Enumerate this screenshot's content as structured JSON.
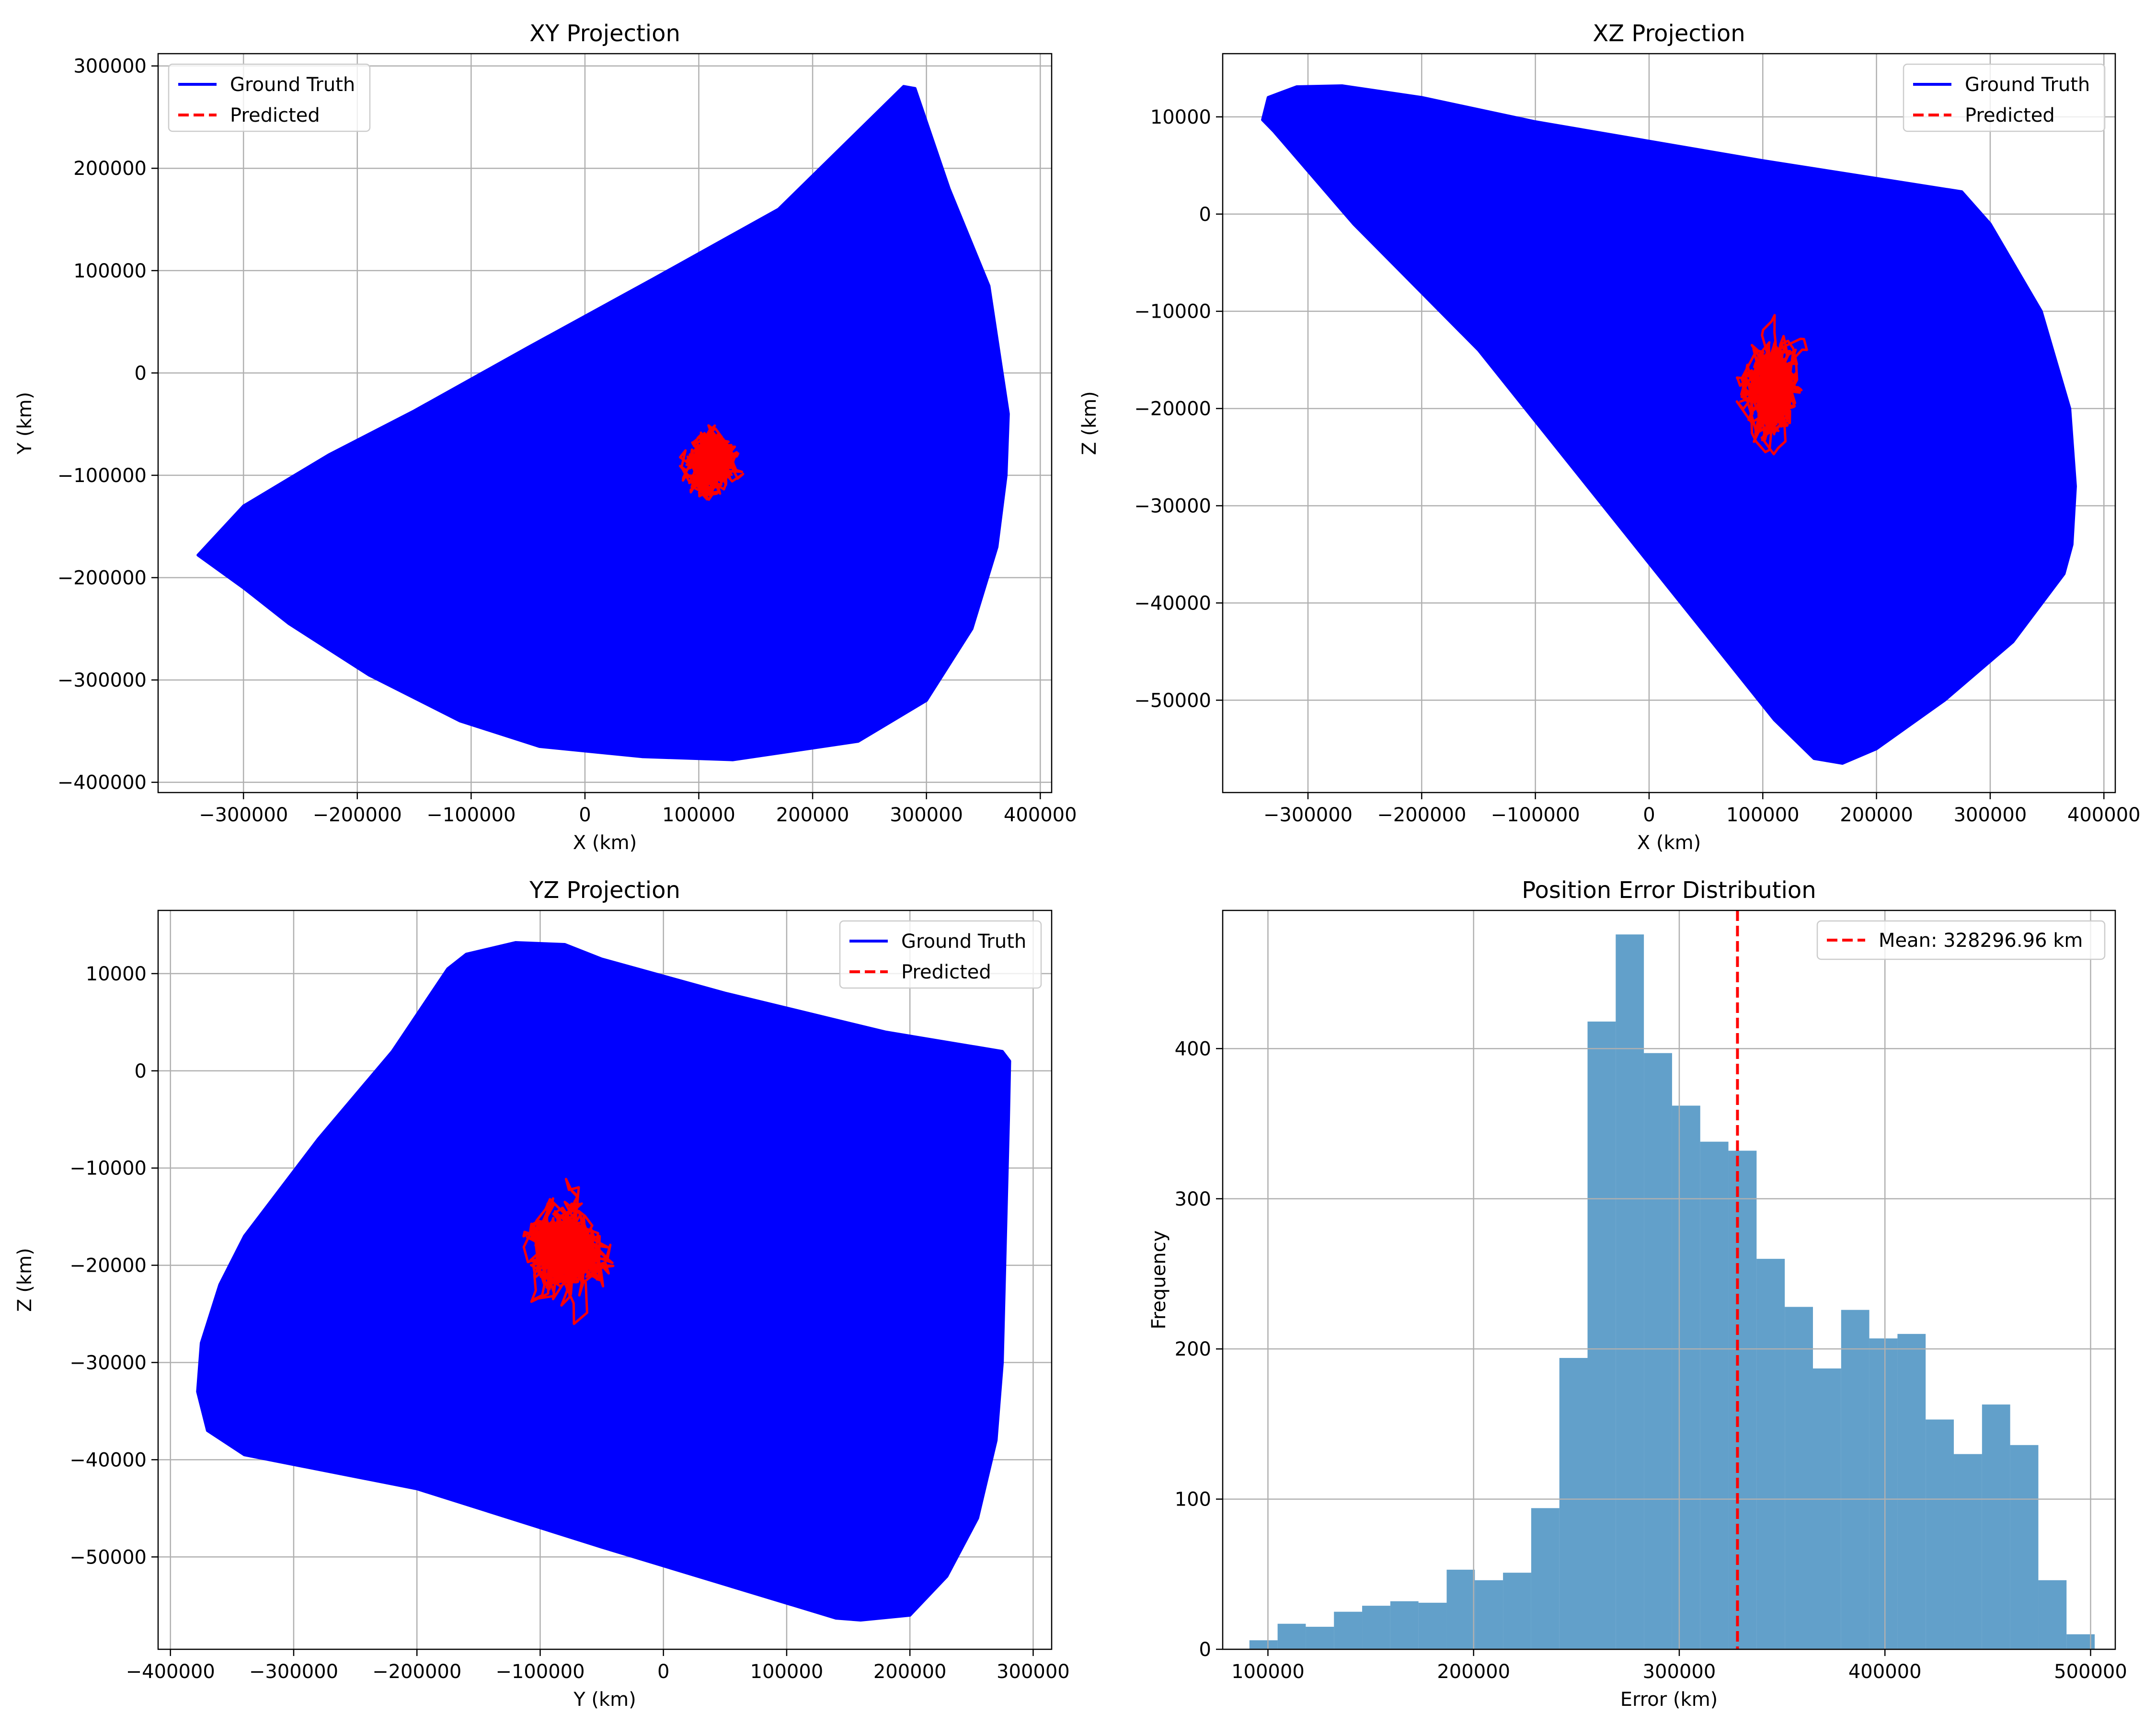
{
  "figure": {
    "background": "#ffffff",
    "grid_color": "#b0b0b0",
    "axes_color": "#000000"
  },
  "chart_data": [
    {
      "type": "line",
      "title": "XY Projection",
      "xlabel": "X (km)",
      "ylabel": "Y (km)",
      "xlim": [
        -375000,
        410000
      ],
      "ylim": [
        -410000,
        312000
      ],
      "xticks": [
        -300000,
        -200000,
        -100000,
        0,
        100000,
        200000,
        300000,
        400000
      ],
      "xtick_labels": [
        "−300000",
        "−200000",
        "−100000",
        "0",
        "100000",
        "200000",
        "300000",
        "400000"
      ],
      "yticks": [
        -400000,
        -300000,
        -200000,
        -100000,
        0,
        100000,
        200000,
        300000
      ],
      "ytick_labels": [
        "−400000",
        "−300000",
        "−200000",
        "−100000",
        "0",
        "100000",
        "200000",
        "300000"
      ],
      "grid": true,
      "legend": "top-left",
      "series": [
        {
          "name": "Ground Truth",
          "color": "#0000ff",
          "style": "solid",
          "render": "filled-envelope",
          "points": [
            [
              -340000,
              -178000
            ],
            [
              -300000,
              -130000
            ],
            [
              -225000,
              -80000
            ],
            [
              -150000,
              -37000
            ],
            [
              -50000,
              25000
            ],
            [
              60000,
              92000
            ],
            [
              170000,
              160000
            ],
            [
              280000,
              280000
            ],
            [
              290000,
              278000
            ],
            [
              320000,
              180000
            ],
            [
              355000,
              85000
            ],
            [
              372000,
              -40000
            ],
            [
              370000,
              -100000
            ],
            [
              362000,
              -170000
            ],
            [
              340000,
              -250000
            ],
            [
              300000,
              -320000
            ],
            [
              240000,
              -360000
            ],
            [
              130000,
              -378000
            ],
            [
              50000,
              -375000
            ],
            [
              -40000,
              -365000
            ],
            [
              -110000,
              -340000
            ],
            [
              -190000,
              -295000
            ],
            [
              -260000,
              -245000
            ],
            [
              -300000,
              -210000
            ]
          ]
        },
        {
          "name": "Predicted",
          "color": "#ff0000",
          "style": "dashed",
          "render": "cluster",
          "center": [
            110000,
            -88000
          ],
          "spread": [
            38000,
            55000
          ]
        }
      ]
    },
    {
      "type": "line",
      "title": "XZ Projection",
      "xlabel": "X (km)",
      "ylabel": "Z (km)",
      "xlim": [
        -375000,
        410000
      ],
      "ylim": [
        -59500,
        16500
      ],
      "xticks": [
        -300000,
        -200000,
        -100000,
        0,
        100000,
        200000,
        300000,
        400000
      ],
      "xtick_labels": [
        "−300000",
        "−200000",
        "−100000",
        "0",
        "100000",
        "200000",
        "300000",
        "400000"
      ],
      "yticks": [
        -50000,
        -40000,
        -30000,
        -20000,
        -10000,
        0,
        10000
      ],
      "ytick_labels": [
        "−50000",
        "−40000",
        "−30000",
        "−20000",
        "−10000",
        "0",
        "10000"
      ],
      "grid": true,
      "legend": "top-right",
      "series": [
        {
          "name": "Ground Truth",
          "color": "#0000ff",
          "style": "solid",
          "render": "filled-envelope",
          "points": [
            [
              -340000,
              9700
            ],
            [
              -335000,
              12000
            ],
            [
              -310000,
              13100
            ],
            [
              -270000,
              13200
            ],
            [
              -200000,
              12000
            ],
            [
              -100000,
              9500
            ],
            [
              100000,
              5500
            ],
            [
              275000,
              2300
            ],
            [
              300000,
              -1000
            ],
            [
              345000,
              -10000
            ],
            [
              370000,
              -20000
            ],
            [
              375000,
              -28000
            ],
            [
              372000,
              -34000
            ],
            [
              365000,
              -37000
            ],
            [
              320000,
              -44000
            ],
            [
              260000,
              -50000
            ],
            [
              200000,
              -55000
            ],
            [
              170000,
              -56500
            ],
            [
              145000,
              -56000
            ],
            [
              110000,
              -52000
            ],
            [
              -20000,
              -33000
            ],
            [
              -150000,
              -14000
            ],
            [
              -260000,
              -1000
            ],
            [
              -330000,
              8500
            ]
          ]
        },
        {
          "name": "Predicted",
          "color": "#ff0000",
          "style": "dashed",
          "render": "cluster",
          "center": [
            108000,
            -18000
          ],
          "spread": [
            40000,
            9000
          ]
        }
      ]
    },
    {
      "type": "line",
      "title": "YZ Projection",
      "xlabel": "Y (km)",
      "ylabel": "Z (km)",
      "xlim": [
        -410000,
        315000
      ],
      "ylim": [
        -59500,
        16500
      ],
      "xticks": [
        -400000,
        -300000,
        -200000,
        -100000,
        0,
        100000,
        200000,
        300000
      ],
      "xtick_labels": [
        "−400000",
        "−300000",
        "−200000",
        "−100000",
        "0",
        "100000",
        "200000",
        "300000"
      ],
      "yticks": [
        -50000,
        -40000,
        -30000,
        -20000,
        -10000,
        0,
        10000
      ],
      "ytick_labels": [
        "−50000",
        "−40000",
        "−30000",
        "−20000",
        "−10000",
        "0",
        "10000"
      ],
      "grid": true,
      "legend": "top-right",
      "series": [
        {
          "name": "Ground Truth",
          "color": "#0000ff",
          "style": "solid",
          "render": "filled-envelope",
          "points": [
            [
              -175000,
              10500
            ],
            [
              -160000,
              12000
            ],
            [
              -120000,
              13200
            ],
            [
              -80000,
              13000
            ],
            [
              -50000,
              11500
            ],
            [
              50000,
              8000
            ],
            [
              180000,
              4000
            ],
            [
              275000,
              2000
            ],
            [
              281000,
              1000
            ],
            [
              280000,
              -5000
            ],
            [
              278000,
              -15000
            ],
            [
              275000,
              -30000
            ],
            [
              270000,
              -38000
            ],
            [
              255000,
              -46000
            ],
            [
              230000,
              -52000
            ],
            [
              200000,
              -56000
            ],
            [
              160000,
              -56500
            ],
            [
              140000,
              -56300
            ],
            [
              -50000,
              -49000
            ],
            [
              -200000,
              -43000
            ],
            [
              -340000,
              -39500
            ],
            [
              -370000,
              -37000
            ],
            [
              -378000,
              -33000
            ],
            [
              -375000,
              -28000
            ],
            [
              -360000,
              -22000
            ],
            [
              -340000,
              -17000
            ],
            [
              -280000,
              -7000
            ],
            [
              -220000,
              2000
            ]
          ]
        },
        {
          "name": "Predicted",
          "color": "#ff0000",
          "style": "dashed",
          "render": "cluster",
          "center": [
            -82000,
            -18000
          ],
          "spread": [
            55000,
            9000
          ]
        }
      ]
    },
    {
      "type": "bar",
      "title": "Position Error Distribution",
      "xlabel": "Error (km)",
      "ylabel": "Frequency",
      "xlim": [
        78000,
        512000
      ],
      "ylim": [
        0,
        492
      ],
      "xticks": [
        100000,
        200000,
        300000,
        400000,
        500000
      ],
      "xtick_labels": [
        "100000",
        "200000",
        "300000",
        "400000",
        "500000"
      ],
      "yticks": [
        0,
        100,
        200,
        300,
        400
      ],
      "ytick_labels": [
        "0",
        "100",
        "200",
        "300",
        "400"
      ],
      "grid": true,
      "legend": "top-right",
      "bar_color": "#1f77b4",
      "bar_alpha": 0.7,
      "bin_start": 91000,
      "bin_width": 13700,
      "values": [
        6,
        17,
        15,
        25,
        29,
        32,
        31,
        53,
        46,
        51,
        94,
        194,
        418,
        476,
        397,
        362,
        338,
        332,
        260,
        228,
        187,
        226,
        207,
        210,
        153,
        130,
        163,
        136,
        46,
        10
      ],
      "mean": {
        "value": 328296.96,
        "label": "Mean: 328296.96 km",
        "color": "#ff0000",
        "style": "dashed"
      }
    }
  ]
}
